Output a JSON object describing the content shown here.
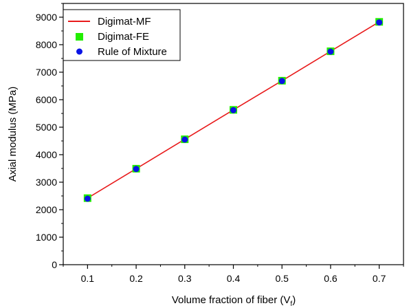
{
  "chart_data": {
    "type": "line",
    "xlabel": "Volume fraction of fiber (V",
    "xlabel_sub": "f",
    "xlabel_end": ")",
    "ylabel": "Axial modulus (MPa)",
    "xlim": [
      0.05,
      0.75
    ],
    "ylim": [
      0,
      9500
    ],
    "x_ticks": [
      0.1,
      0.2,
      0.3,
      0.4,
      0.5,
      0.6,
      0.7
    ],
    "y_ticks": [
      0,
      1000,
      2000,
      3000,
      4000,
      5000,
      6000,
      7000,
      8000,
      9000
    ],
    "x_tick_labels": [
      "0.1",
      "0.2",
      "0.3",
      "0.4",
      "0.5",
      "0.6",
      "0.7"
    ],
    "y_tick_labels": [
      "0",
      "1000",
      "2000",
      "3000",
      "4000",
      "5000",
      "6000",
      "7000",
      "8000",
      "9000"
    ],
    "grid": false,
    "legend_position": "top-left",
    "x": [
      0.1,
      0.2,
      0.3,
      0.4,
      0.5,
      0.6,
      0.7
    ],
    "series": [
      {
        "name": "Digimat-MF",
        "style": "line",
        "color": "#e8191a",
        "values": [
          2420,
          3490,
          4560,
          5630,
          6690,
          7760,
          8830
        ]
      },
      {
        "name": "Digimat-FE",
        "style": "square",
        "color": "#22ee00",
        "values": [
          2420,
          3490,
          4560,
          5630,
          6690,
          7760,
          8830
        ]
      },
      {
        "name": "Rule of Mixture",
        "style": "circle",
        "color": "#0a14e6",
        "values": [
          2400,
          3480,
          4550,
          5620,
          6680,
          7750,
          8810
        ]
      }
    ]
  }
}
